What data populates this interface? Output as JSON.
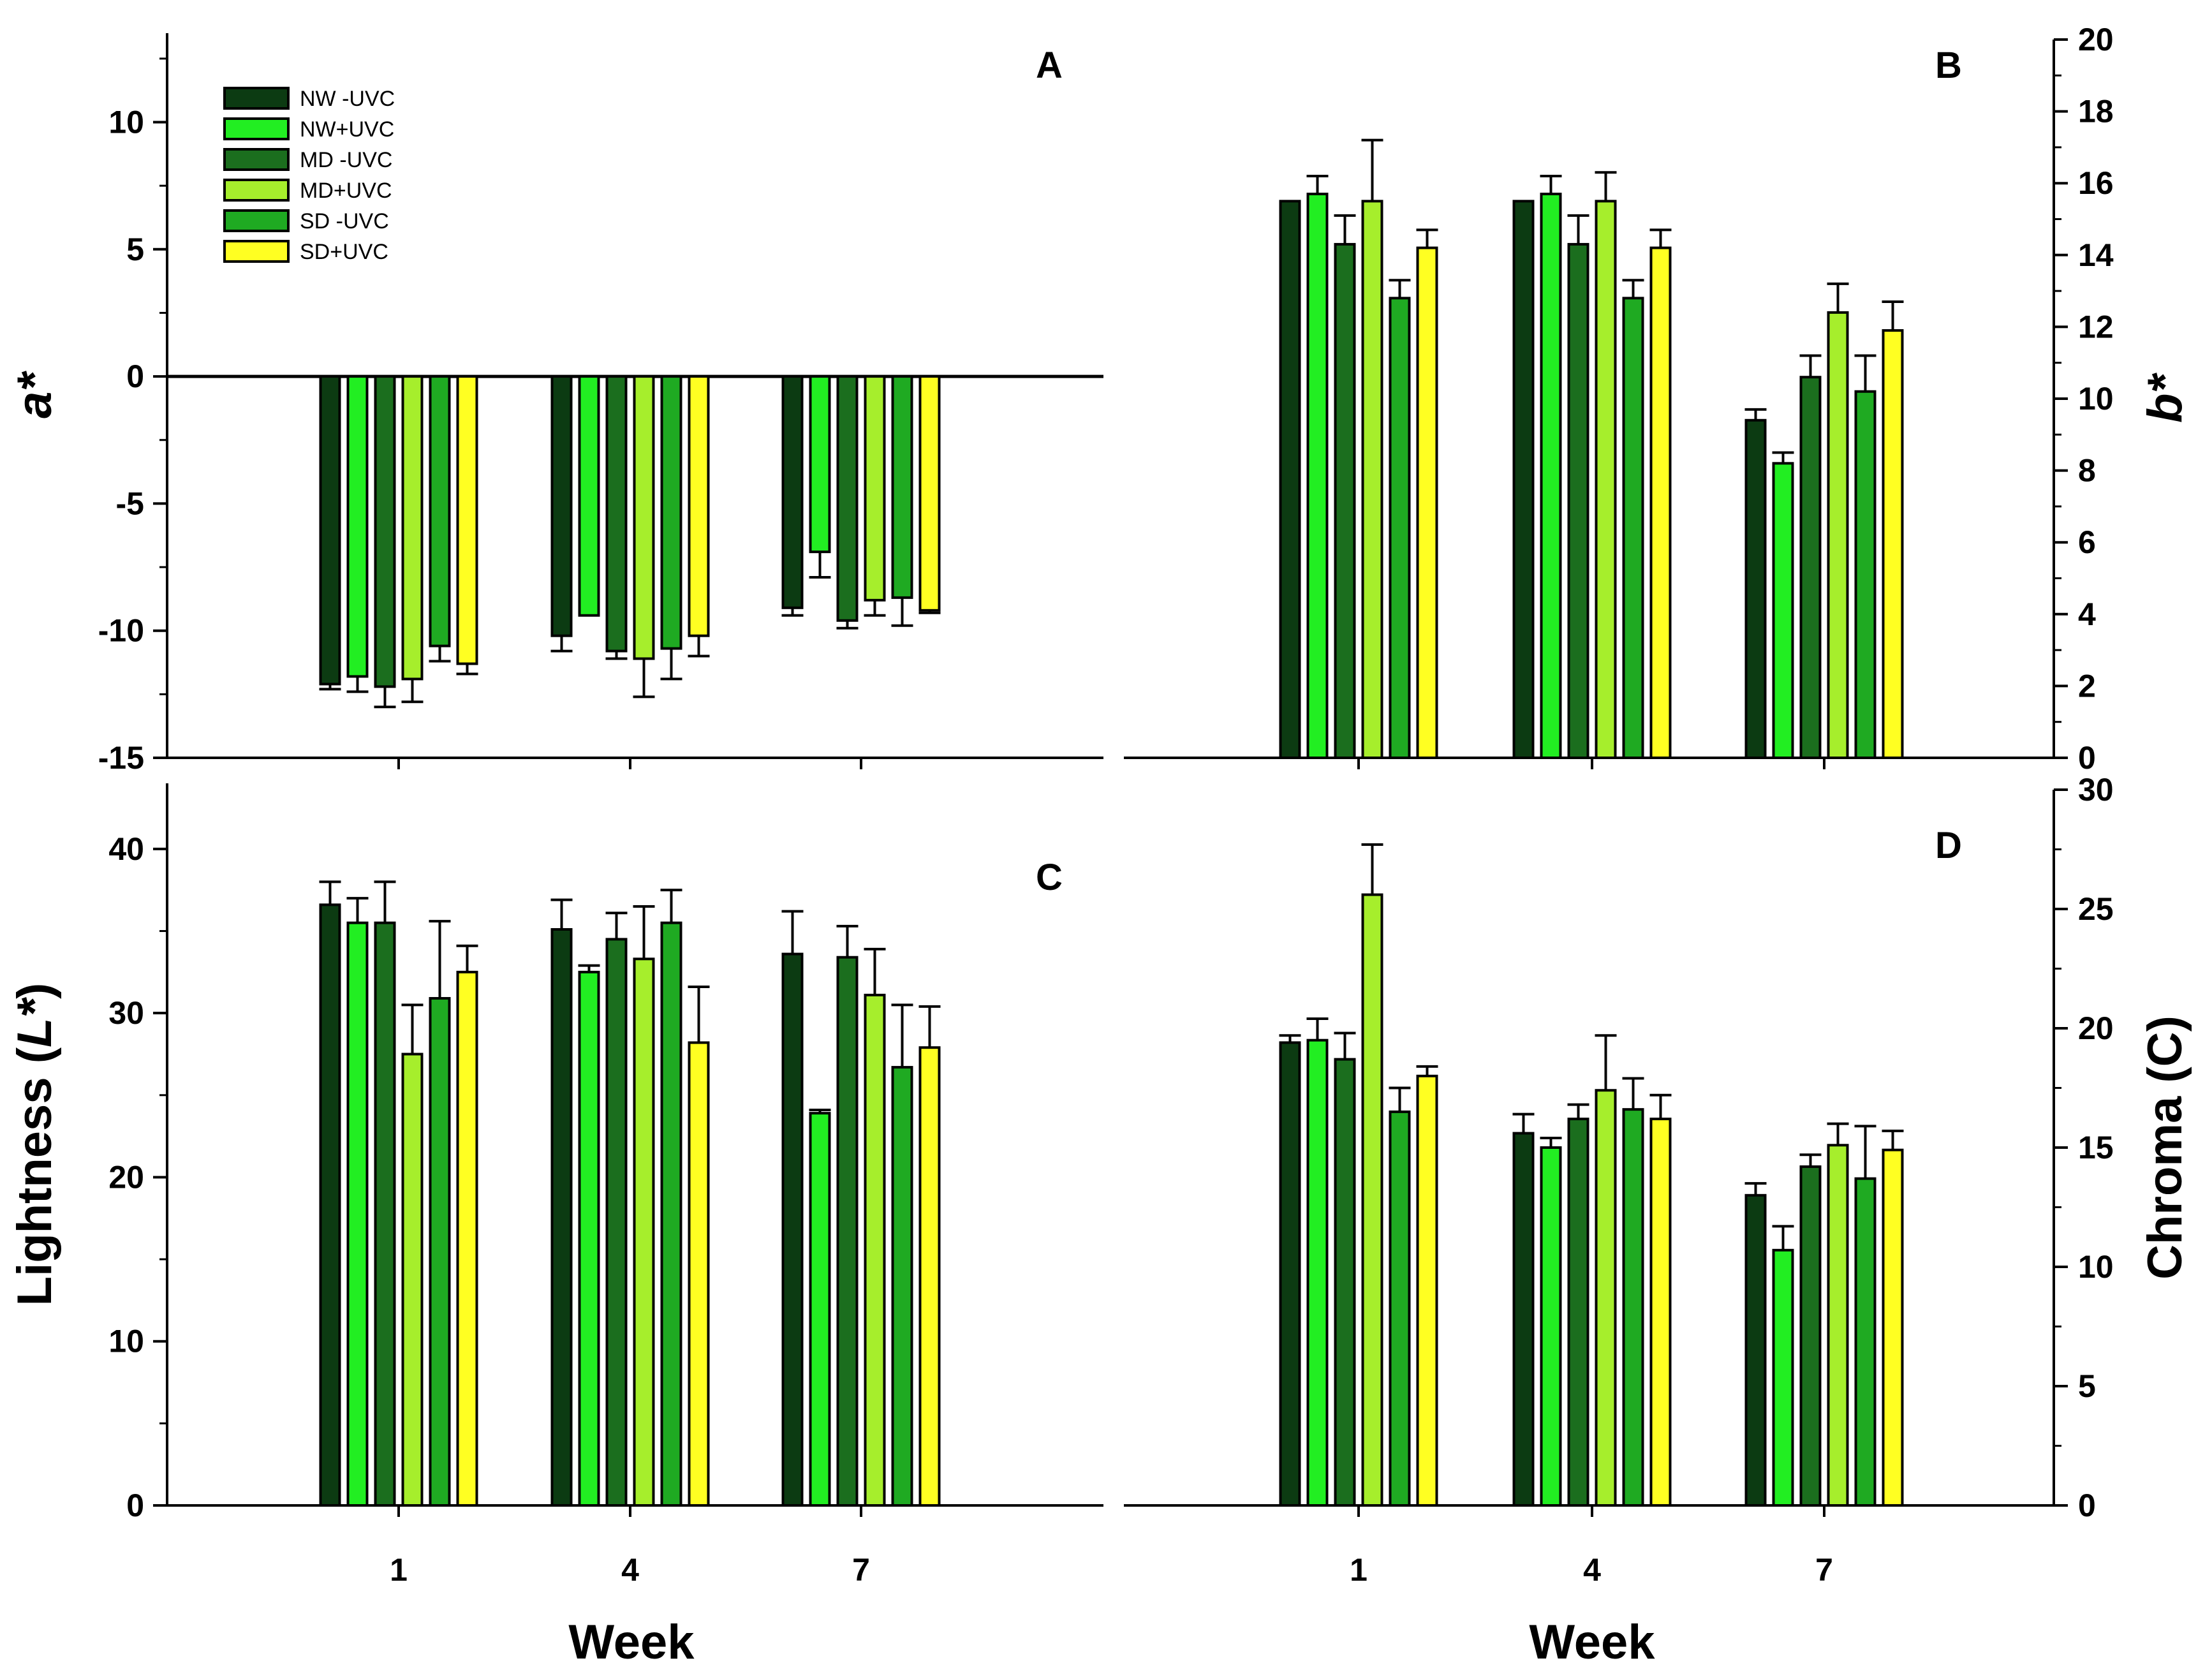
{
  "chart_data": {
    "type": "bar",
    "colors": {
      "NW -UVC": "#0c3b12",
      "NW+UVC": "#22ee22",
      "MD -UVC": "#1b6e1e",
      "MD+UVC": "#a6ee2c",
      "SD -UVC": "#1faa22",
      "SD+UVC": "#ffff22",
      "outline": "#000000"
    },
    "legend": {
      "position": "top-left of panel A",
      "entries": [
        "NW -UVC",
        "NW+UVC",
        "MD -UVC",
        "MD+UVC",
        "SD -UVC",
        "SD+UVC"
      ]
    },
    "xlabel": "Week",
    "panels": [
      {
        "id": "A",
        "letter": "A",
        "ylabel_main": "a*",
        "ylabel_italic": "",
        "ylabel_tail": "",
        "y_axis_side": "left",
        "ylim": [
          -15,
          13.5
        ],
        "yticks": [
          10,
          5,
          0,
          -5,
          -10,
          -15
        ],
        "categories": [
          "1",
          "4",
          "7"
        ],
        "zero_line": true,
        "series": [
          {
            "name": "NW -UVC",
            "values": [
              -12.1,
              -10.2,
              -9.1
            ],
            "errors": [
              0.2,
              0.6,
              0.3
            ]
          },
          {
            "name": "NW+UVC",
            "values": [
              -11.8,
              -9.4,
              -6.9
            ],
            "errors": [
              0.6,
              0.0,
              1.0
            ]
          },
          {
            "name": "MD -UVC",
            "values": [
              -12.2,
              -10.8,
              -9.6
            ],
            "errors": [
              0.8,
              0.3,
              0.3
            ]
          },
          {
            "name": "MD+UVC",
            "values": [
              -11.9,
              -11.1,
              -8.8
            ],
            "errors": [
              0.9,
              1.5,
              0.6
            ]
          },
          {
            "name": "SD -UVC",
            "values": [
              -10.6,
              -10.7,
              -8.7
            ],
            "errors": [
              0.6,
              1.2,
              1.1
            ]
          },
          {
            "name": "SD+UVC",
            "values": [
              -11.3,
              -10.2,
              -9.2
            ],
            "errors": [
              0.4,
              0.8,
              0.1
            ]
          }
        ]
      },
      {
        "id": "B",
        "letter": "B",
        "ylabel_main": "b*",
        "ylabel_italic": "",
        "ylabel_tail": "",
        "y_axis_side": "right",
        "ylim": [
          0,
          20
        ],
        "yticks": [
          0,
          2,
          4,
          6,
          8,
          10,
          12,
          14,
          16,
          18,
          20
        ],
        "categories": [
          "1",
          "4",
          "7"
        ],
        "zero_line": false,
        "series": [
          {
            "name": "NW -UVC",
            "values": [
              15.5,
              15.5,
              9.4
            ],
            "errors": [
              0.0,
              0.0,
              0.3
            ]
          },
          {
            "name": "NW+UVC",
            "values": [
              15.7,
              15.7,
              8.2
            ],
            "errors": [
              0.5,
              0.5,
              0.3
            ]
          },
          {
            "name": "MD -UVC",
            "values": [
              14.3,
              14.3,
              10.6
            ],
            "errors": [
              0.8,
              0.8,
              0.6
            ]
          },
          {
            "name": "MD+UVC",
            "values": [
              15.5,
              15.5,
              12.4
            ],
            "errors": [
              1.7,
              0.8,
              0.8
            ]
          },
          {
            "name": "SD -UVC",
            "values": [
              12.8,
              12.8,
              10.2
            ],
            "errors": [
              0.5,
              0.5,
              1.0
            ]
          },
          {
            "name": "SD+UVC",
            "values": [
              14.2,
              14.2,
              11.9
            ],
            "errors": [
              0.5,
              0.5,
              0.8
            ]
          }
        ]
      },
      {
        "id": "C",
        "letter": "C",
        "ylabel_main": "Lightness (",
        "ylabel_italic": "L*",
        "ylabel_tail": ")",
        "y_axis_side": "left",
        "ylim": [
          0,
          44
        ],
        "yticks": [
          0,
          10,
          20,
          30,
          40
        ],
        "categories": [
          "1",
          "4",
          "7"
        ],
        "zero_line": false,
        "series": [
          {
            "name": "NW -UVC",
            "values": [
              36.6,
              35.1,
              33.6
            ],
            "errors": [
              1.4,
              1.8,
              2.6
            ]
          },
          {
            "name": "NW+UVC",
            "values": [
              35.5,
              32.5,
              23.9
            ],
            "errors": [
              1.5,
              0.4,
              0.2
            ]
          },
          {
            "name": "MD -UVC",
            "values": [
              35.5,
              34.5,
              33.4
            ],
            "errors": [
              2.5,
              1.6,
              1.9
            ]
          },
          {
            "name": "MD+UVC",
            "values": [
              27.5,
              33.3,
              31.1
            ],
            "errors": [
              3.0,
              3.2,
              2.8
            ]
          },
          {
            "name": "SD -UVC",
            "values": [
              30.9,
              35.5,
              26.7
            ],
            "errors": [
              4.7,
              2.0,
              3.8
            ]
          },
          {
            "name": "SD+UVC",
            "values": [
              32.5,
              28.2,
              27.9
            ],
            "errors": [
              1.6,
              3.4,
              2.5
            ]
          }
        ]
      },
      {
        "id": "D",
        "letter": "D",
        "ylabel_main": "Chroma (C)",
        "ylabel_italic": "",
        "ylabel_tail": "",
        "y_axis_side": "right",
        "ylim": [
          0,
          30
        ],
        "yticks": [
          0,
          5,
          10,
          15,
          20,
          25,
          30
        ],
        "categories": [
          "1",
          "4",
          "7"
        ],
        "zero_line": false,
        "series": [
          {
            "name": "NW -UVC",
            "values": [
              19.4,
              15.6,
              13.0
            ],
            "errors": [
              0.3,
              0.8,
              0.5
            ]
          },
          {
            "name": "NW+UVC",
            "values": [
              19.5,
              15.0,
              10.7
            ],
            "errors": [
              0.9,
              0.4,
              1.0
            ]
          },
          {
            "name": "MD -UVC",
            "values": [
              18.7,
              16.2,
              14.2
            ],
            "errors": [
              1.1,
              0.6,
              0.5
            ]
          },
          {
            "name": "MD+UVC",
            "values": [
              25.6,
              17.4,
              15.1
            ],
            "errors": [
              2.1,
              2.3,
              0.9
            ]
          },
          {
            "name": "SD -UVC",
            "values": [
              16.5,
              16.6,
              13.7
            ],
            "errors": [
              1.0,
              1.3,
              2.2
            ]
          },
          {
            "name": "SD+UVC",
            "values": [
              18.0,
              16.2,
              14.9
            ],
            "errors": [
              0.4,
              1.0,
              0.8
            ]
          }
        ]
      }
    ]
  }
}
